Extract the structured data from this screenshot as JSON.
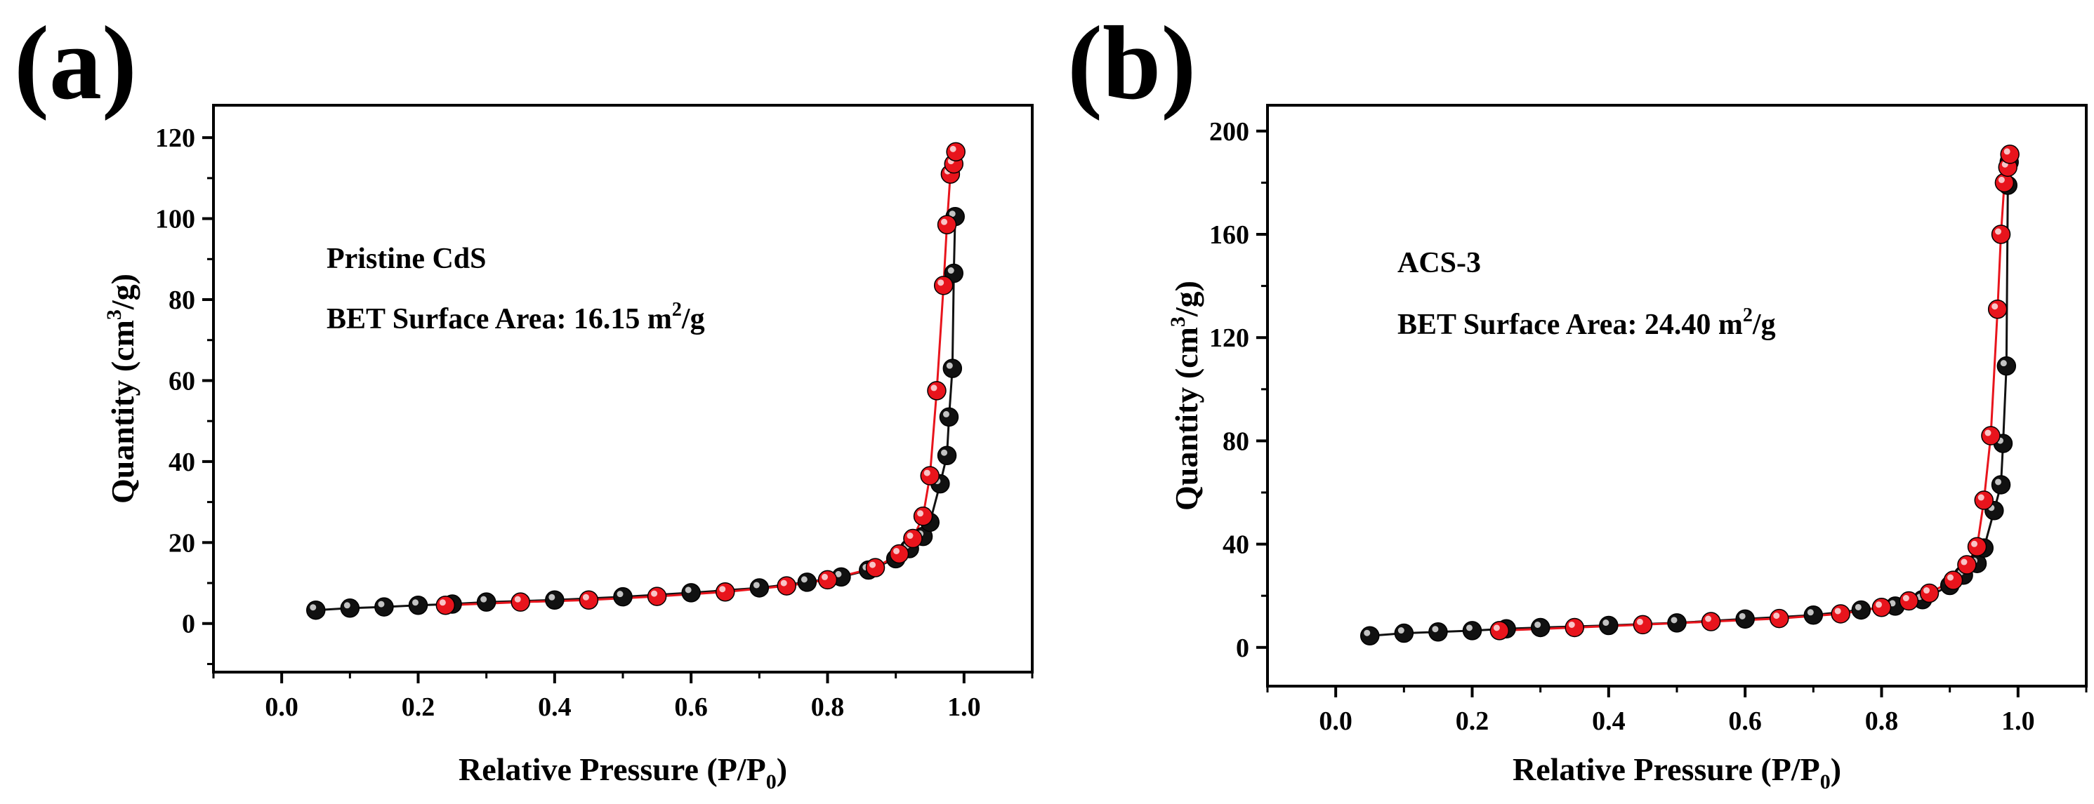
{
  "figure": {
    "colors": {
      "adsorption": "#111111",
      "desorption": "#e8141c",
      "axis": "#000000"
    },
    "panels": [
      {
        "panel_label": "(a)",
        "sample": "Pristine CdS",
        "bet_prefix": "BET Surface Area: 16.15 m",
        "bet_sup": "2",
        "bet_suffix": "/g"
      },
      {
        "panel_label": "(b)",
        "sample": "ACS-3",
        "bet_prefix": "BET Surface Area: 24.40 m",
        "bet_sup": "2",
        "bet_suffix": "/g"
      }
    ]
  },
  "chart_data": [
    {
      "type": "line",
      "title": "(a)",
      "xlabel": "Relative Pressure (P/P0)",
      "ylabel": "Quantity (cm3/g)",
      "xlabel_parts": {
        "main": "Relative Pressure (P/P",
        "sub": "0",
        "end": ")"
      },
      "ylabel_parts": {
        "main": "Quantity (cm",
        "sup": "3",
        "end": "/g)"
      },
      "xlim": [
        -0.1,
        1.1
      ],
      "ylim": [
        -12,
        128
      ],
      "xticks": [
        0.0,
        0.2,
        0.4,
        0.6,
        0.8,
        1.0
      ],
      "xtick_labels": [
        "0.0",
        "0.2",
        "0.4",
        "0.6",
        "0.8",
        "1.0"
      ],
      "yticks": [
        0,
        20,
        40,
        60,
        80,
        100,
        120
      ],
      "ytick_labels": [
        "0",
        "20",
        "40",
        "60",
        "80",
        "100",
        "120"
      ],
      "annotations": [
        "Pristine CdS",
        "BET Surface Area: 16.15 m2/g"
      ],
      "series": [
        {
          "name": "Adsorption",
          "x": [
            0.05,
            0.1,
            0.15,
            0.2,
            0.25,
            0.3,
            0.4,
            0.5,
            0.6,
            0.7,
            0.77,
            0.82,
            0.86,
            0.9,
            0.92,
            0.94,
            0.95,
            0.965,
            0.975,
            0.978,
            0.983,
            0.985,
            0.987
          ],
          "y": [
            3.3,
            3.8,
            4.1,
            4.5,
            4.8,
            5.3,
            5.8,
            6.6,
            7.6,
            8.8,
            10.2,
            11.5,
            13.2,
            16.0,
            18.5,
            21.5,
            25.0,
            34.5,
            41.5,
            51.0,
            63.0,
            86.5,
            100.5
          ]
        },
        {
          "name": "Desorption",
          "x": [
            0.24,
            0.35,
            0.45,
            0.55,
            0.65,
            0.74,
            0.8,
            0.87,
            0.905,
            0.925,
            0.94,
            0.95,
            0.96,
            0.97,
            0.975,
            0.98,
            0.985,
            0.988
          ],
          "y": [
            4.5,
            5.3,
            5.8,
            6.7,
            7.8,
            9.3,
            10.8,
            13.8,
            17.2,
            21.0,
            26.5,
            36.5,
            57.5,
            83.5,
            98.5,
            111.0,
            113.5,
            116.5
          ]
        }
      ]
    },
    {
      "type": "line",
      "title": "(b)",
      "xlabel": "Relative Pressure (P/P0)",
      "ylabel": "Quantity (cm3/g)",
      "xlabel_parts": {
        "main": "Relative Pressure (P/P",
        "sub": "0",
        "end": ")"
      },
      "ylabel_parts": {
        "main": "Quantity (cm",
        "sup": "3",
        "end": "/g)"
      },
      "xlim": [
        -0.1,
        1.1
      ],
      "ylim": [
        -15,
        210
      ],
      "xticks": [
        0.0,
        0.2,
        0.4,
        0.6,
        0.8,
        1.0
      ],
      "xtick_labels": [
        "0.0",
        "0.2",
        "0.4",
        "0.6",
        "0.8",
        "1.0"
      ],
      "yticks": [
        0,
        40,
        80,
        120,
        160,
        200
      ],
      "ytick_labels": [
        "0",
        "40",
        "80",
        "120",
        "160",
        "200"
      ],
      "annotations": [
        "ACS-3",
        "BET Surface Area: 24.40 m2/g"
      ],
      "series": [
        {
          "name": "Adsorption",
          "x": [
            0.05,
            0.1,
            0.15,
            0.2,
            0.25,
            0.3,
            0.4,
            0.5,
            0.6,
            0.7,
            0.77,
            0.82,
            0.86,
            0.9,
            0.92,
            0.94,
            0.95,
            0.965,
            0.975,
            0.978,
            0.983,
            0.985,
            0.987
          ],
          "y": [
            4.5,
            5.5,
            6.0,
            6.5,
            7.2,
            7.7,
            8.5,
            9.5,
            11.0,
            12.5,
            14.5,
            16.0,
            18.5,
            24.0,
            28.0,
            32.5,
            38.5,
            53.0,
            63.0,
            79.0,
            109.0,
            179.0,
            188.0
          ]
        },
        {
          "name": "Desorption",
          "x": [
            0.24,
            0.35,
            0.45,
            0.55,
            0.65,
            0.74,
            0.8,
            0.84,
            0.87,
            0.905,
            0.925,
            0.94,
            0.95,
            0.96,
            0.97,
            0.975,
            0.98,
            0.985,
            0.988
          ],
          "y": [
            6.5,
            7.7,
            8.8,
            10.0,
            11.2,
            13.0,
            15.5,
            18.0,
            21.0,
            26.0,
            32.0,
            39.0,
            57.0,
            82.0,
            131.0,
            160.0,
            180.0,
            186.0,
            191.0
          ]
        }
      ]
    }
  ]
}
